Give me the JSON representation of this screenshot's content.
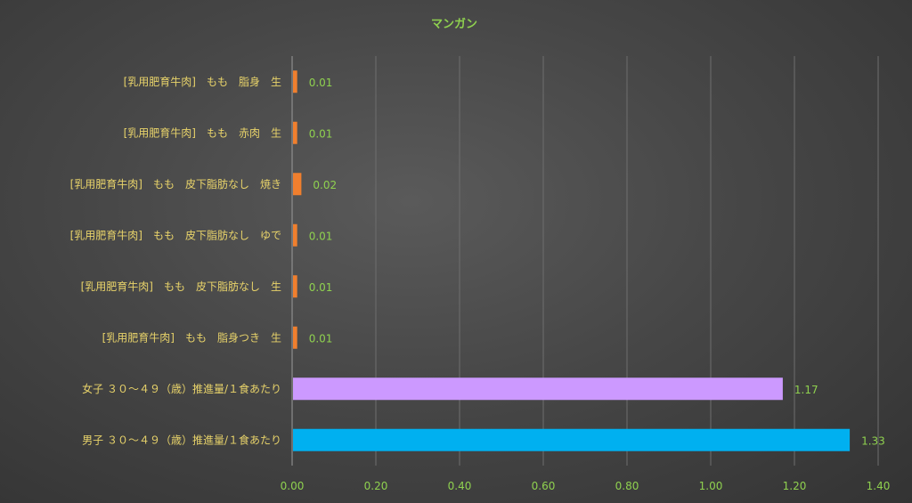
{
  "chart_data": {
    "type": "bar",
    "orientation": "horizontal",
    "title": "マンガン",
    "categories": [
      "[乳用肥育牛肉]　もも　脂身　生",
      "[乳用肥育牛肉]　もも　赤肉　生",
      "[乳用肥育牛肉]　もも　皮下脂肪なし　焼き",
      "[乳用肥育牛肉]　もも　皮下脂肪なし　ゆで",
      "[乳用肥育牛肉]　もも　皮下脂肪なし　生",
      "[乳用肥育牛肉]　もも　脂身つき　生",
      "女子 ３０～４９（歳）推進量/１食あたり",
      "男子 ３０～４９（歳）推進量/１食あたり"
    ],
    "values": [
      0.01,
      0.01,
      0.02,
      0.01,
      0.01,
      0.01,
      1.17,
      1.33
    ],
    "value_labels": [
      "0.01",
      "0.01",
      "0.02",
      "0.01",
      "0.01",
      "0.01",
      "1.17",
      "1.33"
    ],
    "bar_colors": [
      "#f07f2e",
      "#f07f2e",
      "#f07f2e",
      "#f07f2e",
      "#f07f2e",
      "#f07f2e",
      "#cc99ff",
      "#00b0f0"
    ],
    "xlim": [
      0,
      1.4
    ],
    "xticks": [
      "0.00",
      "0.20",
      "0.40",
      "0.60",
      "0.80",
      "1.00",
      "1.20",
      "1.40"
    ],
    "grid": true,
    "legend": "none"
  }
}
